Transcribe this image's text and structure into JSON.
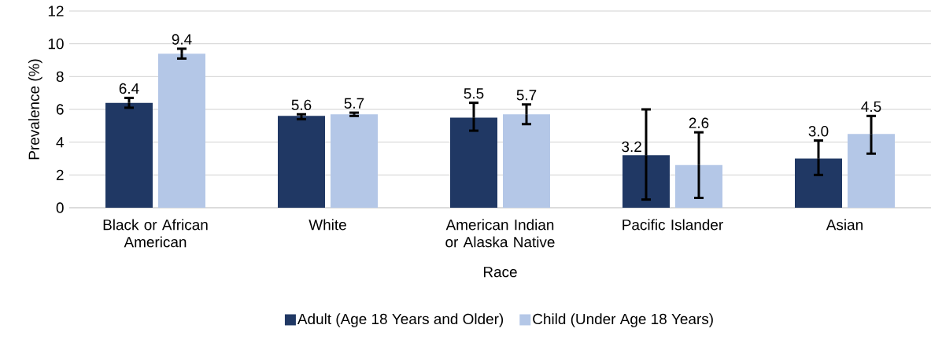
{
  "chart_data": {
    "type": "bar",
    "xlabel": "Race",
    "ylabel": "Prevalence (%)",
    "categories": [
      "Black or African American",
      "White",
      "American Indian or Alaska Native",
      "Pacific Islander",
      "Asian"
    ],
    "series": [
      {
        "name": "Adult (Age 18 Years and Older)",
        "color": "#203864",
        "values": [
          6.4,
          5.6,
          5.5,
          3.2,
          3.0
        ],
        "value_labels": [
          "6.4",
          "5.6",
          "5.5",
          "3.2",
          "3.0"
        ],
        "errors": [
          [
            6.1,
            6.7
          ],
          [
            5.4,
            5.7
          ],
          [
            4.7,
            6.4
          ],
          [
            0.5,
            6.0
          ],
          [
            2.0,
            4.1
          ]
        ]
      },
      {
        "name": "Child (Under Age 18 Years)",
        "color": "#b4c7e7",
        "values": [
          9.4,
          5.7,
          5.7,
          2.6,
          4.5
        ],
        "value_labels": [
          "9.4",
          "5.7",
          "5.7",
          "2.6",
          "4.5"
        ],
        "errors": [
          [
            9.1,
            9.7
          ],
          [
            5.6,
            5.8
          ],
          [
            5.1,
            6.3
          ],
          [
            0.6,
            4.6
          ],
          [
            3.3,
            5.6
          ]
        ]
      }
    ],
    "ylim": [
      0,
      12
    ],
    "yticks": [
      0,
      2,
      4,
      6,
      8,
      10,
      12
    ],
    "grid": "y",
    "legend": "bottom"
  }
}
